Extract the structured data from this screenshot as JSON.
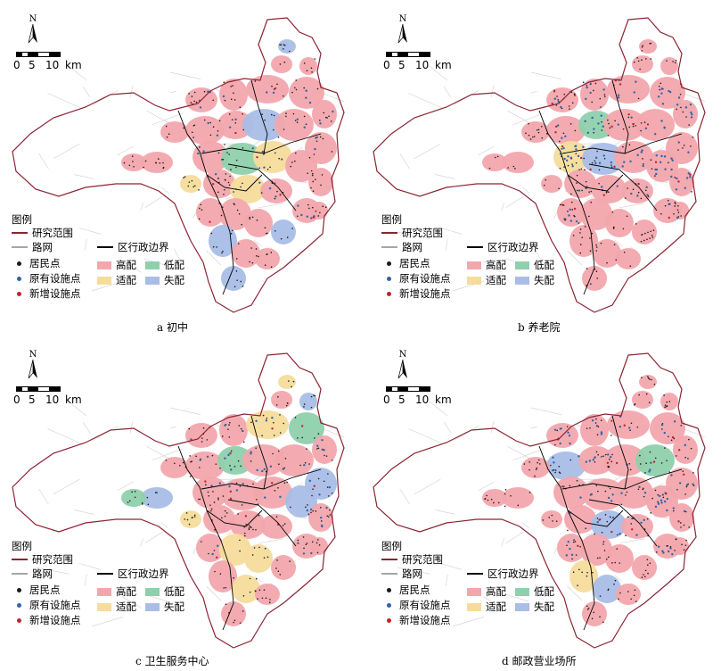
{
  "scale": {
    "ticks": [
      "0",
      "5",
      "10"
    ],
    "unit": "km"
  },
  "north_label": "N",
  "legend": {
    "title": "图例",
    "study_area": "研究范围",
    "road_network": "路网",
    "district_boundary": "区行政边界",
    "residential_point": "居民点",
    "existing_facility": "原有设施点",
    "new_facility": "新增设施点",
    "high": "高配",
    "low": "低配",
    "suitable": "适配",
    "mismatch": "失配"
  },
  "colors": {
    "study_area": "#8a2433",
    "road_network": "#a6a6a6",
    "district_boundary": "#000000",
    "residential_point": "#1a1a1a",
    "existing_facility": "#2f64a8",
    "new_facility": "#c0242c",
    "high": "#f2a7ad",
    "low": "#8fd0ac",
    "suitable": "#f6dc9c",
    "mismatch": "#a9bde6"
  },
  "panels": [
    {
      "caption": "a 初中",
      "mix": {
        "high": 0.62,
        "suitable": 0.14,
        "low": 0.1,
        "mismatch": 0.14
      },
      "facility_density": 0.2
    },
    {
      "caption": "b 养老院",
      "mix": {
        "high": 0.86,
        "suitable": 0.08,
        "low": 0.02,
        "mismatch": 0.04
      },
      "facility_density": 0.9
    },
    {
      "caption": "c 卫生服务中心",
      "mix": {
        "high": 0.7,
        "suitable": 0.1,
        "low": 0.12,
        "mismatch": 0.08
      },
      "facility_density": 0.3
    },
    {
      "caption": "d 邮政营业场所",
      "mix": {
        "high": 0.8,
        "suitable": 0.08,
        "low": 0.04,
        "mismatch": 0.08
      },
      "facility_density": 0.6
    }
  ]
}
